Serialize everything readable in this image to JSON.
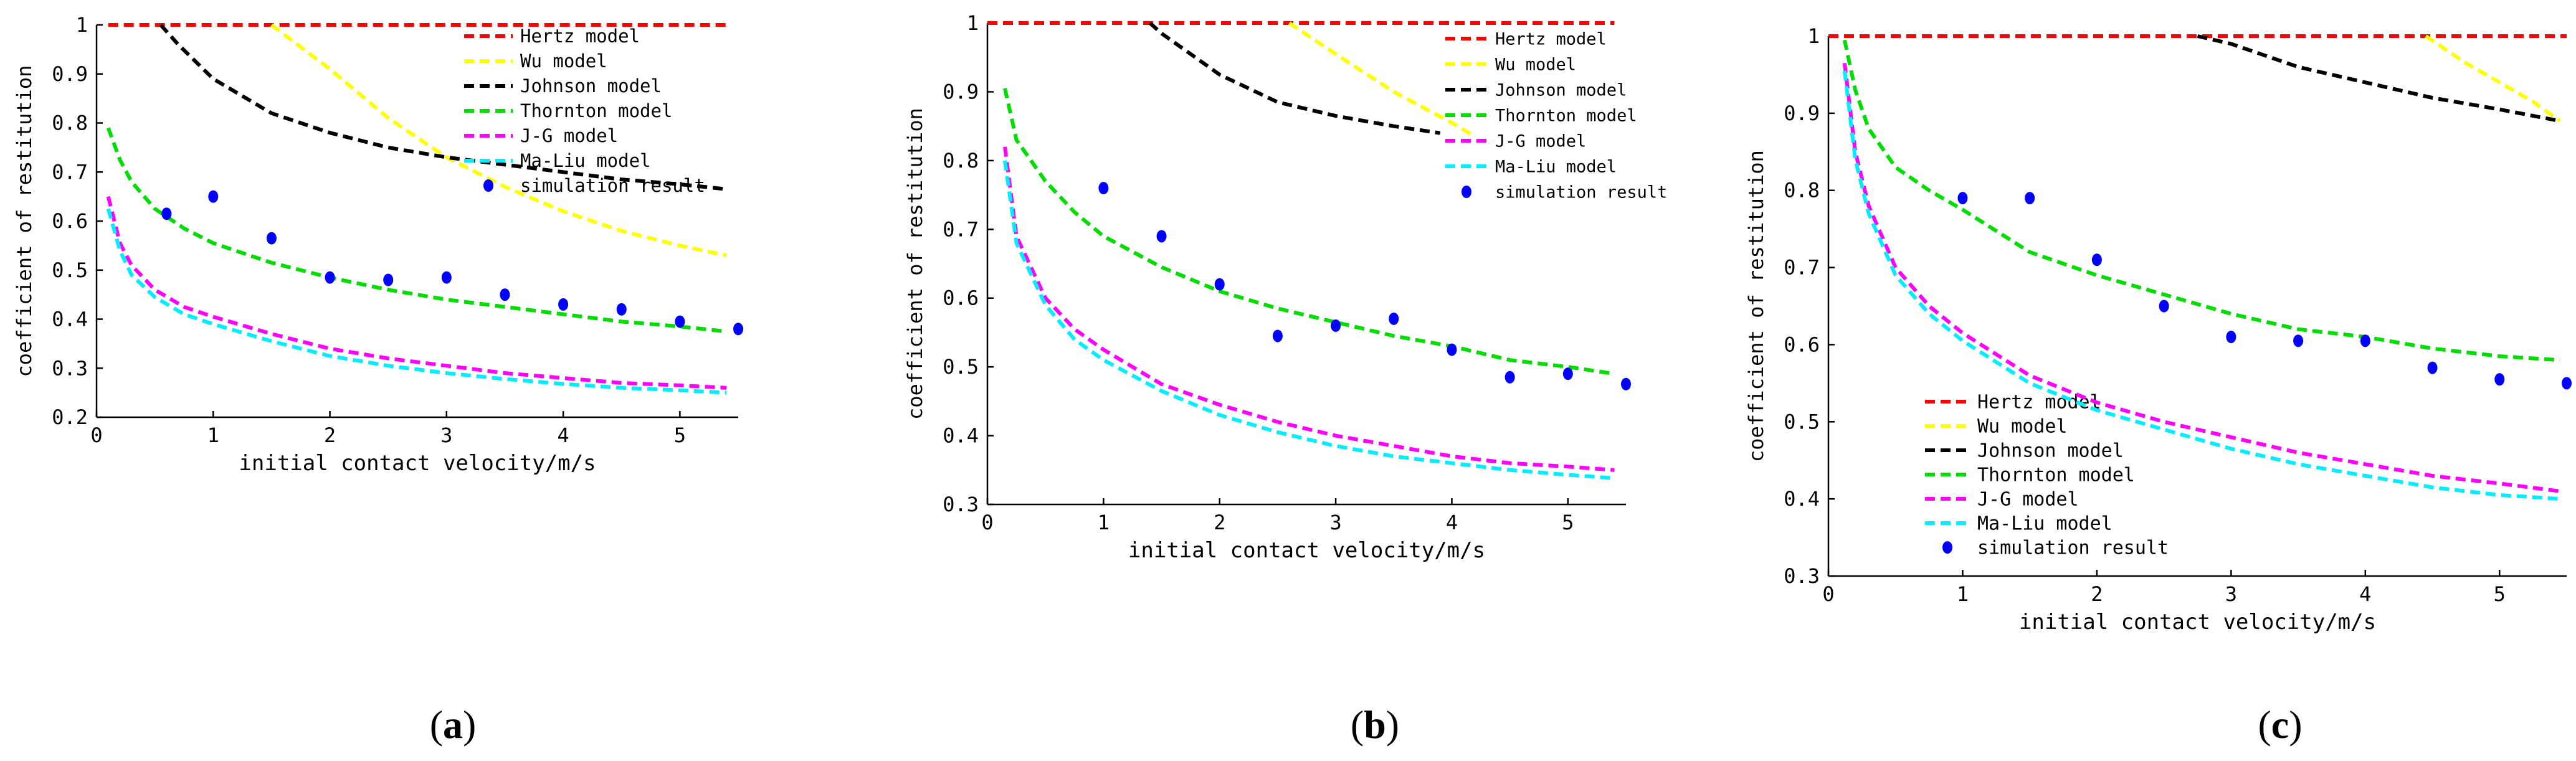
{
  "figure": {
    "panels": [
      {
        "prefix": "(",
        "letter": "a",
        "suffix": ")"
      },
      {
        "prefix": "(",
        "letter": "b",
        "suffix": ")"
      },
      {
        "prefix": "(",
        "letter": "c",
        "suffix": ")"
      }
    ]
  },
  "colors": {
    "hertz": "#ff0000",
    "wu": "#ffff00",
    "johnson": "#000000",
    "thornton": "#00dd00",
    "jg": "#ff00ff",
    "maliu": "#00eeff",
    "simulation": "#0000ff",
    "axis": "#000000"
  },
  "chart_data": [
    {
      "type": "line",
      "panel": "a",
      "title": "",
      "xlabel": "initial contact velocity/m/s",
      "ylabel": "coefficient of restitution",
      "xlim": [
        0,
        5.5
      ],
      "ylim": [
        0.2,
        1.0
      ],
      "xticks": [
        0,
        1,
        2,
        3,
        4,
        5
      ],
      "xtick_labels": [
        "0",
        "1",
        "2",
        "3",
        "4",
        "5"
      ],
      "yticks": [
        0.2,
        0.3,
        0.4,
        0.5,
        0.6,
        0.7,
        0.8,
        0.9,
        1.0
      ],
      "ytick_labels": [
        "0.2",
        "0.3",
        "0.4",
        "0.5",
        "0.6",
        "0.7",
        "0.8",
        "0.9",
        "1"
      ],
      "legend_position": "top-right",
      "series": [
        {
          "key": "hertz",
          "name": "Hertz model",
          "style": "dashed-line",
          "x": [
            0.1,
            1,
            2,
            3,
            4,
            5,
            5.4
          ],
          "y": [
            1.0,
            1.0,
            1.0,
            1.0,
            1.0,
            1.0,
            1.0
          ]
        },
        {
          "key": "wu",
          "name": "Wu model",
          "style": "dashed-line",
          "x": [
            1.5,
            2,
            2.5,
            3,
            3.5,
            4,
            4.5,
            5,
            5.4
          ],
          "y": [
            1.0,
            0.91,
            0.81,
            0.73,
            0.67,
            0.62,
            0.58,
            0.55,
            0.53
          ]
        },
        {
          "key": "johnson",
          "name": "Johnson model",
          "style": "dashed-line",
          "x": [
            0.55,
            0.7,
            1,
            1.5,
            2,
            2.5,
            3,
            3.5,
            4,
            4.5,
            5,
            5.4
          ],
          "y": [
            1.0,
            0.96,
            0.89,
            0.82,
            0.78,
            0.75,
            0.73,
            0.715,
            0.7,
            0.685,
            0.675,
            0.665
          ]
        },
        {
          "key": "thornton",
          "name": "Thornton model",
          "style": "dashed-line",
          "x": [
            0.1,
            0.2,
            0.3,
            0.5,
            0.75,
            1,
            1.5,
            2,
            2.5,
            3,
            3.5,
            4,
            4.5,
            5,
            5.4
          ],
          "y": [
            0.79,
            0.725,
            0.68,
            0.625,
            0.585,
            0.555,
            0.515,
            0.485,
            0.46,
            0.44,
            0.425,
            0.41,
            0.395,
            0.385,
            0.375
          ]
        },
        {
          "key": "jg",
          "name": "J-G model",
          "style": "dashed-line",
          "x": [
            0.1,
            0.2,
            0.3,
            0.5,
            0.75,
            1,
            1.5,
            2,
            2.5,
            3,
            3.5,
            4,
            4.5,
            5,
            5.4
          ],
          "y": [
            0.65,
            0.555,
            0.51,
            0.46,
            0.425,
            0.405,
            0.37,
            0.34,
            0.32,
            0.305,
            0.29,
            0.28,
            0.27,
            0.265,
            0.26
          ]
        },
        {
          "key": "maliu",
          "name": "Ma-Liu model",
          "style": "dashed-line",
          "x": [
            0.1,
            0.2,
            0.3,
            0.5,
            0.75,
            1,
            1.5,
            2,
            2.5,
            3,
            3.5,
            4,
            4.5,
            5,
            5.4
          ],
          "y": [
            0.625,
            0.54,
            0.49,
            0.445,
            0.41,
            0.39,
            0.355,
            0.325,
            0.305,
            0.29,
            0.278,
            0.268,
            0.26,
            0.255,
            0.25
          ]
        },
        {
          "key": "simulation",
          "name": "simulation result",
          "style": "markers",
          "x": [
            0.6,
            1,
            1.5,
            2,
            2.5,
            3,
            3.5,
            4,
            4.5,
            5,
            5.5
          ],
          "y": [
            0.615,
            0.65,
            0.565,
            0.485,
            0.48,
            0.485,
            0.45,
            0.43,
            0.42,
            0.395,
            0.38
          ]
        }
      ]
    },
    {
      "type": "line",
      "panel": "b",
      "title": "",
      "xlabel": "initial contact velocity/m/s",
      "ylabel": "coefficient of restitution",
      "xlim": [
        0,
        5.5
      ],
      "ylim": [
        0.3,
        1.0
      ],
      "xticks": [
        0,
        1,
        2,
        3,
        4,
        5
      ],
      "xtick_labels": [
        "0",
        "1",
        "2",
        "3",
        "4",
        "5"
      ],
      "yticks": [
        0.3,
        0.4,
        0.5,
        0.6,
        0.7,
        0.8,
        0.9,
        1.0
      ],
      "ytick_labels": [
        "0.3",
        "0.4",
        "0.5",
        "0.6",
        "0.7",
        "0.8",
        "0.9",
        "1"
      ],
      "legend_position": "top-right",
      "series": [
        {
          "key": "hertz",
          "name": "Hertz model",
          "style": "dashed-line",
          "x": [
            0,
            1,
            2,
            3,
            4,
            5,
            5.4
          ],
          "y": [
            1.0,
            1.0,
            1.0,
            1.0,
            1.0,
            1.0,
            1.0
          ]
        },
        {
          "key": "wu",
          "name": "Wu model",
          "style": "dashed-line",
          "x": [
            2.6,
            3,
            3.5,
            4,
            4.2
          ],
          "y": [
            1.0,
            0.955,
            0.9,
            0.855,
            0.835
          ]
        },
        {
          "key": "johnson",
          "name": "Johnson model",
          "style": "dashed-line",
          "x": [
            1.4,
            1.5,
            2,
            2.5,
            3,
            3.5,
            3.9
          ],
          "y": [
            1.0,
            0.985,
            0.925,
            0.885,
            0.865,
            0.85,
            0.84
          ]
        },
        {
          "key": "thornton",
          "name": "Thornton model",
          "style": "dashed-line",
          "x": [
            0.15,
            0.25,
            0.5,
            0.75,
            1,
            1.5,
            2,
            2.5,
            3,
            3.5,
            4,
            4.5,
            5,
            5.4
          ],
          "y": [
            0.905,
            0.83,
            0.77,
            0.725,
            0.69,
            0.645,
            0.61,
            0.585,
            0.565,
            0.545,
            0.53,
            0.51,
            0.5,
            0.49
          ]
        },
        {
          "key": "jg",
          "name": "J-G model",
          "style": "dashed-line",
          "x": [
            0.15,
            0.25,
            0.5,
            0.75,
            1,
            1.5,
            2,
            2.5,
            3,
            3.5,
            4,
            4.5,
            5,
            5.4
          ],
          "y": [
            0.82,
            0.69,
            0.6,
            0.555,
            0.525,
            0.475,
            0.445,
            0.42,
            0.4,
            0.385,
            0.37,
            0.36,
            0.355,
            0.35
          ]
        },
        {
          "key": "maliu",
          "name": "Ma-Liu model",
          "style": "dashed-line",
          "x": [
            0.15,
            0.25,
            0.5,
            0.75,
            1,
            1.5,
            2,
            2.5,
            3,
            3.5,
            4,
            4.5,
            5,
            5.4
          ],
          "y": [
            0.8,
            0.68,
            0.59,
            0.54,
            0.51,
            0.465,
            0.43,
            0.405,
            0.385,
            0.37,
            0.36,
            0.35,
            0.343,
            0.338
          ]
        },
        {
          "key": "simulation",
          "name": "simulation result",
          "style": "markers",
          "x": [
            1,
            1.5,
            2,
            2.5,
            3,
            3.5,
            4,
            4.5,
            5,
            5.5
          ],
          "y": [
            0.76,
            0.69,
            0.62,
            0.545,
            0.56,
            0.57,
            0.525,
            0.485,
            0.49,
            0.475
          ]
        }
      ]
    },
    {
      "type": "line",
      "panel": "c",
      "title": "",
      "xlabel": "initial contact velocity/m/s",
      "ylabel": "coefficient of restitution",
      "xlim": [
        0,
        5.5
      ],
      "ylim": [
        0.3,
        1.0
      ],
      "xticks": [
        0,
        1,
        2,
        3,
        4,
        5
      ],
      "xtick_labels": [
        "0",
        "1",
        "2",
        "3",
        "4",
        "5"
      ],
      "yticks": [
        0.3,
        0.4,
        0.5,
        0.6,
        0.7,
        0.8,
        0.9,
        1.0
      ],
      "ytick_labels": [
        "0.3",
        "0.4",
        "0.5",
        "0.6",
        "0.7",
        "0.8",
        "0.9",
        "1"
      ],
      "legend_position": "bottom-left",
      "series": [
        {
          "key": "hertz",
          "name": "Hertz model",
          "style": "dashed-line",
          "x": [
            0,
            1,
            2,
            3,
            4,
            5,
            5.5
          ],
          "y": [
            1.0,
            1.0,
            1.0,
            1.0,
            1.0,
            1.0,
            1.0
          ]
        },
        {
          "key": "wu",
          "name": "Wu model",
          "style": "dashed-line",
          "x": [
            4.45,
            4.75,
            5,
            5.25,
            5.45
          ],
          "y": [
            1.0,
            0.965,
            0.94,
            0.915,
            0.89
          ]
        },
        {
          "key": "johnson",
          "name": "Johnson model",
          "style": "dashed-line",
          "x": [
            2.75,
            3,
            3.5,
            4,
            4.5,
            5,
            5.45
          ],
          "y": [
            1.0,
            0.99,
            0.96,
            0.94,
            0.92,
            0.905,
            0.89
          ]
        },
        {
          "key": "thornton",
          "name": "Thornton model",
          "style": "dashed-line",
          "x": [
            0.12,
            0.2,
            0.3,
            0.5,
            0.75,
            1,
            1.5,
            2,
            2.5,
            3,
            3.5,
            4,
            4.5,
            5,
            5.45
          ],
          "y": [
            0.995,
            0.93,
            0.88,
            0.83,
            0.8,
            0.775,
            0.72,
            0.69,
            0.665,
            0.64,
            0.62,
            0.61,
            0.595,
            0.585,
            0.58
          ]
        },
        {
          "key": "jg",
          "name": "J-G model",
          "style": "dashed-line",
          "x": [
            0.12,
            0.2,
            0.3,
            0.5,
            0.75,
            1,
            1.5,
            2,
            2.5,
            3,
            3.5,
            4,
            4.5,
            5,
            5.45
          ],
          "y": [
            0.965,
            0.85,
            0.78,
            0.7,
            0.65,
            0.615,
            0.56,
            0.525,
            0.5,
            0.48,
            0.46,
            0.445,
            0.43,
            0.42,
            0.41
          ]
        },
        {
          "key": "maliu",
          "name": "Ma-Liu model",
          "style": "dashed-line",
          "x": [
            0.12,
            0.2,
            0.3,
            0.5,
            0.75,
            1,
            1.5,
            2,
            2.5,
            3,
            3.5,
            4,
            4.5,
            5,
            5.45
          ],
          "y": [
            0.955,
            0.84,
            0.77,
            0.69,
            0.64,
            0.605,
            0.55,
            0.515,
            0.49,
            0.465,
            0.445,
            0.43,
            0.415,
            0.405,
            0.4
          ]
        },
        {
          "key": "simulation",
          "name": "simulation result",
          "style": "markers",
          "x": [
            1,
            1.5,
            2,
            2.5,
            3,
            3.5,
            4,
            4.5,
            5,
            5.5
          ],
          "y": [
            0.79,
            0.79,
            0.71,
            0.65,
            0.61,
            0.605,
            0.605,
            0.57,
            0.555,
            0.55
          ]
        }
      ]
    }
  ]
}
